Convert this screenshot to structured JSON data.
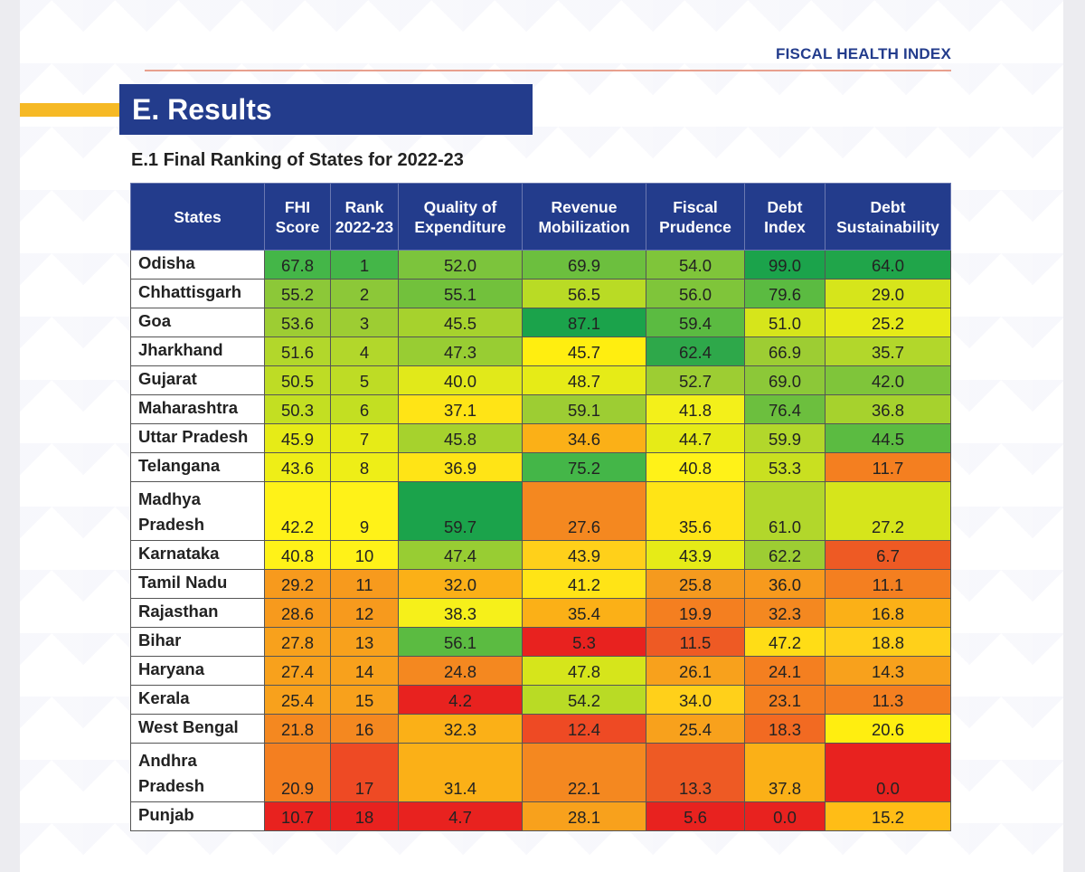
{
  "header": {
    "title": "FISCAL HEALTH INDEX"
  },
  "section": {
    "title": "E. Results"
  },
  "subtitle": "E.1 Final Ranking of States for 2022-23",
  "table": {
    "columns": [
      "States",
      "FHI Score",
      "Rank 2022-23",
      "Quality of Expenditure",
      "Revenue Mobilization",
      "Fiscal Prudence",
      "Debt Index",
      "Debt Sustainability"
    ],
    "rows": [
      {
        "state": "Odisha",
        "cells": [
          "67.8",
          "1",
          "52.0",
          "69.9",
          "54.0",
          "99.0",
          "64.0"
        ],
        "colors": [
          "#44b648",
          "#44b648",
          "#7cc43c",
          "#6cbf3e",
          "#7fc53a",
          "#1ba34b",
          "#20a54a"
        ]
      },
      {
        "state": "Chhattisgarh",
        "cells": [
          "55.2",
          "2",
          "55.1",
          "56.5",
          "56.0",
          "79.6",
          "29.0"
        ],
        "colors": [
          "#8cc838",
          "#8cc838",
          "#72c13c",
          "#b9db25",
          "#7fc53a",
          "#5bbb41",
          "#d6e51b"
        ]
      },
      {
        "state": "Goa",
        "cells": [
          "53.6",
          "3",
          "45.5",
          "87.1",
          "59.4",
          "51.0",
          "25.2"
        ],
        "colors": [
          "#9dcd33",
          "#9dcd33",
          "#a6d22d",
          "#1ba34b",
          "#5bbb41",
          "#d6e51b",
          "#e6eb17"
        ]
      },
      {
        "state": "Jharkhand",
        "cells": [
          "51.6",
          "4",
          "47.3",
          "45.7",
          "62.4",
          "66.9",
          "35.7"
        ],
        "colors": [
          "#b2d72b",
          "#b2d72b",
          "#98cd33",
          "#ffee10",
          "#2ea84a",
          "#9dcd33",
          "#b2d72b"
        ]
      },
      {
        "state": "Gujarat",
        "cells": [
          "50.5",
          "5",
          "40.0",
          "48.7",
          "52.7",
          "69.0",
          "42.0"
        ],
        "colors": [
          "#bedc25",
          "#bedc25",
          "#e1e91a",
          "#e6eb17",
          "#9dcd33",
          "#8cc838",
          "#7fc53a"
        ]
      },
      {
        "state": "Maharashtra",
        "cells": [
          "50.3",
          "6",
          "37.1",
          "59.1",
          "41.8",
          "76.4",
          "36.8"
        ],
        "colors": [
          "#c3df22",
          "#c3df22",
          "#ffe416",
          "#9dcd33",
          "#f3f01a",
          "#6cbf3e",
          "#a6d22d"
        ]
      },
      {
        "state": "Uttar Pradesh",
        "cells": [
          "45.9",
          "7",
          "45.8",
          "34.6",
          "44.7",
          "59.9",
          "44.5"
        ],
        "colors": [
          "#e6eb17",
          "#e6eb17",
          "#a6d22d",
          "#fbb017",
          "#e6eb17",
          "#b2d72b",
          "#5bbb41"
        ]
      },
      {
        "state": "Telangana",
        "cells": [
          "43.6",
          "8",
          "36.9",
          "75.2",
          "40.8",
          "53.3",
          "11.7"
        ],
        "colors": [
          "#eeee17",
          "#eeee17",
          "#ffe416",
          "#44b648",
          "#fff218",
          "#c9e020",
          "#f47f20"
        ]
      },
      {
        "state": "Madhya Pradesh",
        "tall": true,
        "cells": [
          "42.2",
          "9",
          "59.7",
          "27.6",
          "35.6",
          "61.0",
          "27.2"
        ],
        "colors": [
          "#fff218",
          "#fff218",
          "#1ba34b",
          "#f48820",
          "#ffe416",
          "#b2d72b",
          "#d6e51b"
        ]
      },
      {
        "state": "Karnataka",
        "cells": [
          "40.8",
          "10",
          "47.4",
          "43.9",
          "43.9",
          "62.2",
          "6.7"
        ],
        "colors": [
          "#fff218",
          "#fff218",
          "#98cd33",
          "#ffd01a",
          "#e6eb17",
          "#9dcd33",
          "#ee5a24"
        ]
      },
      {
        "state": "Tamil Nadu",
        "cells": [
          "29.2",
          "11",
          "32.0",
          "41.2",
          "25.8",
          "36.0",
          "11.1"
        ],
        "colors": [
          "#f79a1d",
          "#f79a1d",
          "#fbb017",
          "#ffe416",
          "#f59a1e",
          "#f79a1d",
          "#f47f20"
        ]
      },
      {
        "state": "Rajasthan",
        "cells": [
          "28.6",
          "12",
          "38.3",
          "35.4",
          "19.9",
          "32.3",
          "16.8"
        ],
        "colors": [
          "#f79a1d",
          "#f79a1d",
          "#f6f01a",
          "#fbb017",
          "#f47f20",
          "#f48820",
          "#fbb017"
        ]
      },
      {
        "state": "Bihar",
        "cells": [
          "27.8",
          "13",
          "56.1",
          "5.3",
          "11.5",
          "47.2",
          "18.8"
        ],
        "colors": [
          "#f8a11c",
          "#f8a11c",
          "#5bbb41",
          "#e8221f",
          "#ee5a24",
          "#ffdd16",
          "#ffd01a"
        ]
      },
      {
        "state": "Haryana",
        "cells": [
          "27.4",
          "14",
          "24.8",
          "47.8",
          "26.1",
          "24.1",
          "14.3"
        ],
        "colors": [
          "#f8a11c",
          "#f8a11c",
          "#f48820",
          "#d6e51b",
          "#f8a11c",
          "#f47f20",
          "#f8a11c"
        ]
      },
      {
        "state": "Kerala",
        "cells": [
          "25.4",
          "15",
          "4.2",
          "54.2",
          "34.0",
          "23.1",
          "11.3"
        ],
        "colors": [
          "#f8a11c",
          "#f8a11c",
          "#e8221f",
          "#b9db25",
          "#ffd01a",
          "#f47f20",
          "#f47f20"
        ]
      },
      {
        "state": "West Bengal",
        "cells": [
          "21.8",
          "16",
          "32.3",
          "12.4",
          "25.4",
          "18.3",
          "20.6"
        ],
        "colors": [
          "#f48820",
          "#f48820",
          "#fbb017",
          "#ee4a24",
          "#f8a11c",
          "#f26a22",
          "#ffee10"
        ]
      },
      {
        "state": "Andhra Pradesh",
        "tall": true,
        "cells": [
          "20.9",
          "17",
          "31.4",
          "22.1",
          "13.3",
          "37.8",
          "0.0"
        ],
        "colors": [
          "#f47f20",
          "#ee4a24",
          "#fbb017",
          "#f48820",
          "#ee5a24",
          "#fbb017",
          "#e8221f"
        ]
      },
      {
        "state": "Punjab",
        "cells": [
          "10.7",
          "18",
          "4.7",
          "28.1",
          "5.6",
          "0.0",
          "15.2"
        ],
        "colors": [
          "#e8221f",
          "#e8221f",
          "#e8221f",
          "#f8a11c",
          "#e8221f",
          "#e8221f",
          "#ffbd16"
        ]
      }
    ]
  }
}
